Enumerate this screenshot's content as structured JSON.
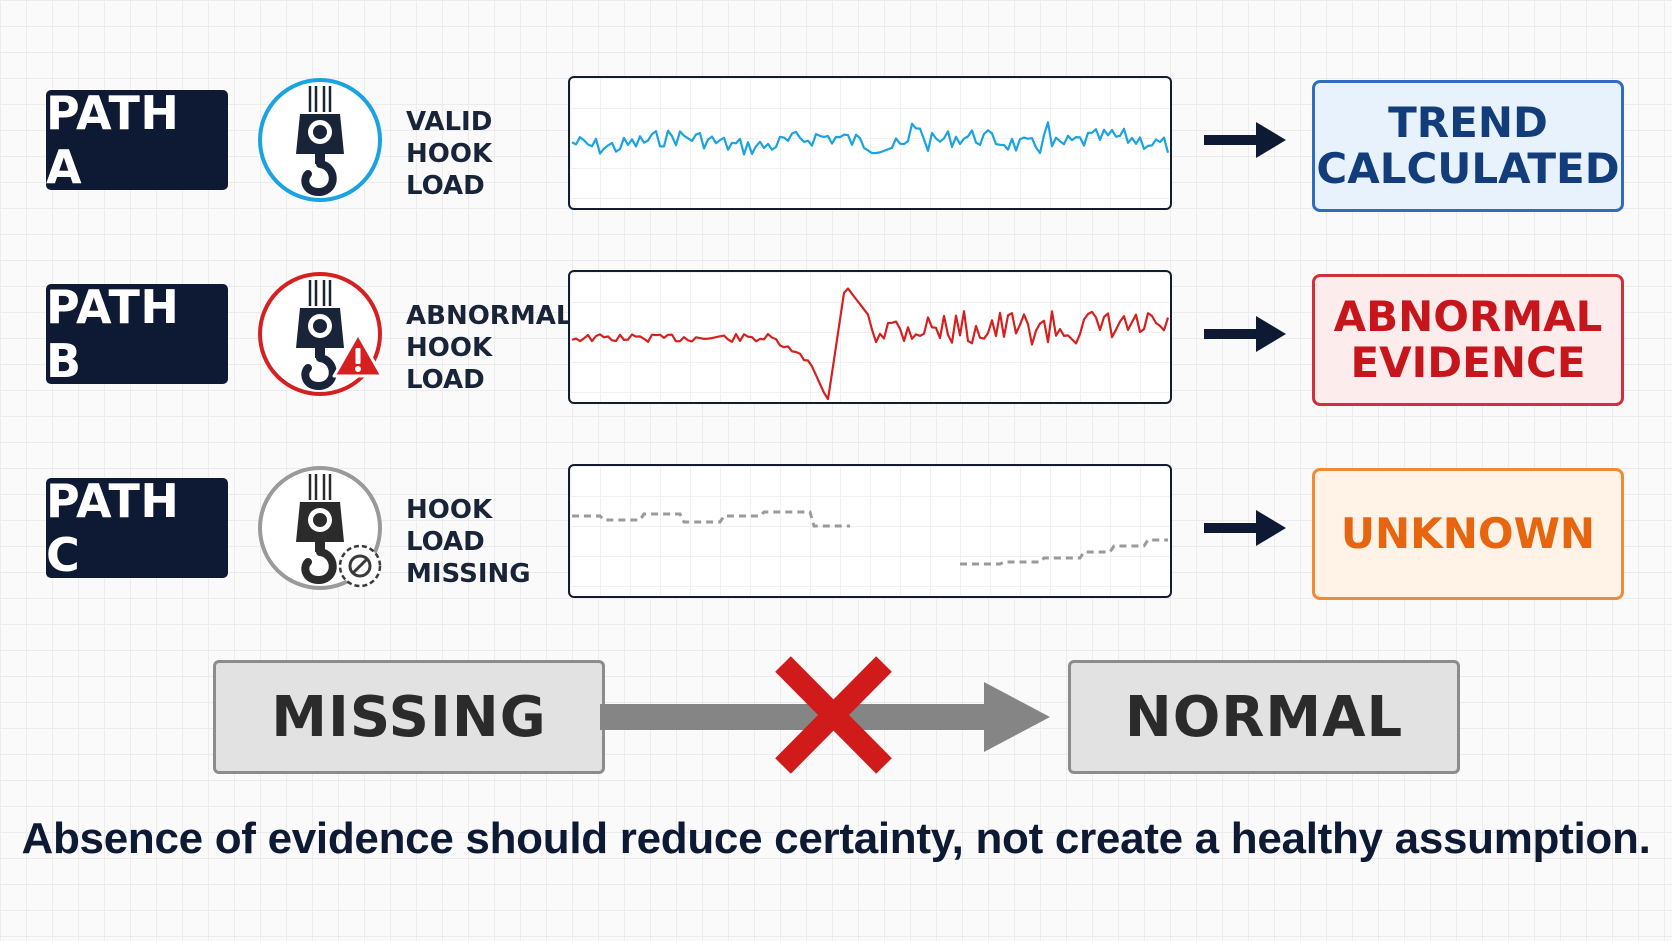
{
  "paths": [
    {
      "id": "a",
      "label": "PATH A",
      "status_line1": "VALID",
      "status_line2": "HOOK LOAD",
      "outcome_line1": "TREND",
      "outcome_line2": "CALCULATED",
      "accent_color": "#1aa3e0",
      "outcome_text_color": "#123d7a",
      "outcome_bg": "#e7f2fc",
      "outcome_border": "#2f6cc0",
      "badge": "none",
      "signal": "valid"
    },
    {
      "id": "b",
      "label": "PATH B",
      "status_line1": "ABNORMAL",
      "status_line2": "HOOK LOAD",
      "outcome_line1": "ABNORMAL",
      "outcome_line2": "EVIDENCE",
      "accent_color": "#d62020",
      "outcome_text_color": "#c7151c",
      "outcome_bg": "#fdecec",
      "outcome_border": "#d23038",
      "badge": "warning-icon",
      "signal": "abnormal"
    },
    {
      "id": "c",
      "label": "PATH C",
      "status_line1": "HOOK LOAD",
      "status_line2": "MISSING",
      "outcome_line1": "UNKNOWN",
      "outcome_line2": "",
      "accent_color": "#9a9a9a",
      "outcome_text_color": "#e8650f",
      "outcome_bg": "#fff2e6",
      "outcome_border": "#f08a33",
      "badge": "prohibited-icon",
      "signal": "missing"
    }
  ],
  "flow": {
    "from_label": "MISSING",
    "to_label": "NORMAL",
    "cross_color": "#d11a1a"
  },
  "caption": "Absence of evidence should reduce certainty, not create a healthy assumption."
}
